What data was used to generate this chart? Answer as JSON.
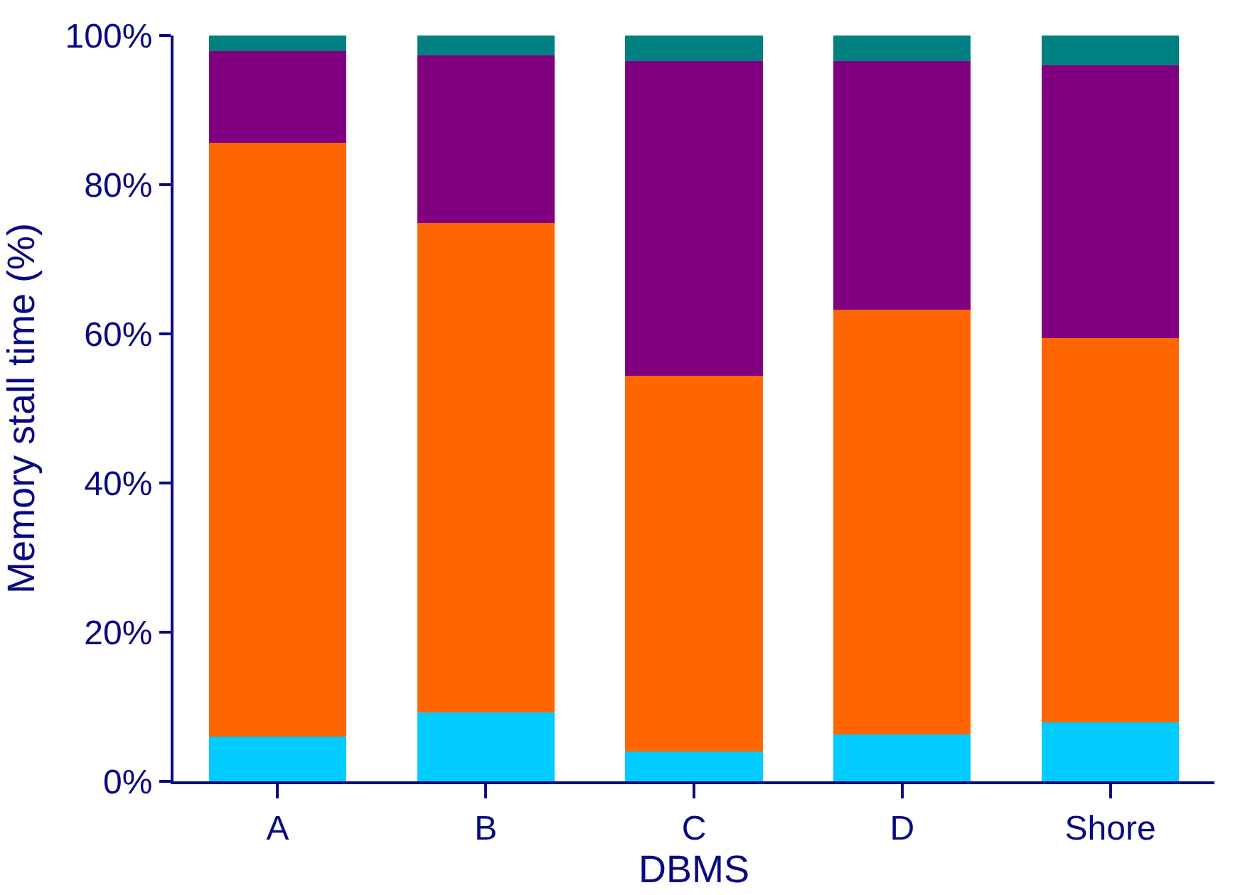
{
  "chart_data": {
    "type": "bar",
    "stacked": true,
    "xlabel": "DBMS",
    "ylabel": "Memory stall time (%)",
    "categories": [
      "A",
      "B",
      "C",
      "D",
      "Shore"
    ],
    "series": [
      {
        "color": "#00ccff",
        "values": [
          6,
          9.2,
          4,
          6.3,
          7.9
        ]
      },
      {
        "color": "#ff6600",
        "values": [
          79.6,
          65.7,
          50.4,
          56.9,
          51.5
        ]
      },
      {
        "color": "#800080",
        "values": [
          12.3,
          22.4,
          42.2,
          33.4,
          36.6
        ]
      },
      {
        "color": "#008080",
        "values": [
          2.1,
          2.7,
          3.4,
          3.4,
          4.0
        ]
      }
    ],
    "ylim": [
      0,
      100
    ],
    "yticks": [
      {
        "value": 0,
        "label": "0%"
      },
      {
        "value": 20,
        "label": "20%"
      },
      {
        "value": 40,
        "label": "40%"
      },
      {
        "value": 60,
        "label": "60%"
      },
      {
        "value": 80,
        "label": "80%"
      },
      {
        "value": 100,
        "label": "100%"
      }
    ]
  }
}
